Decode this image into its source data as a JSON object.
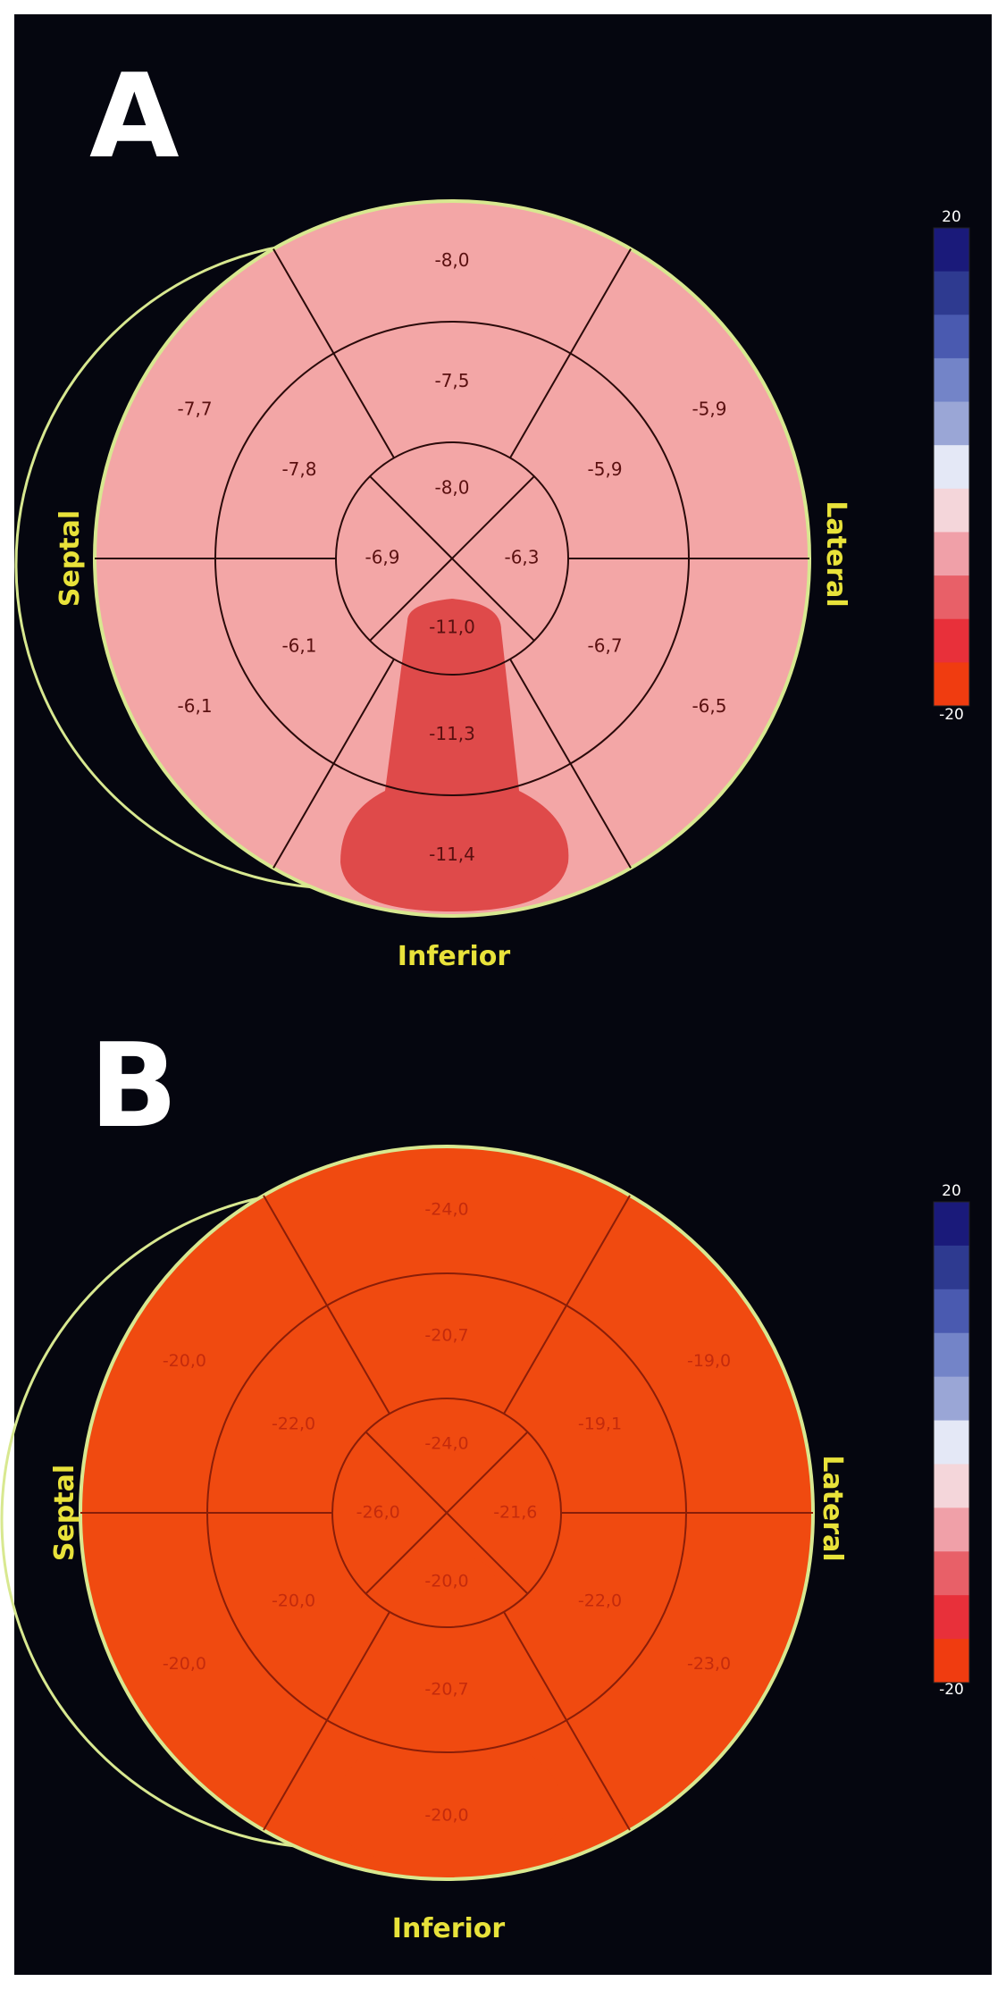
{
  "panels": [
    {
      "letter": "A",
      "labels": {
        "septal": "Septal",
        "lateral": "Lateral",
        "inferior": "Inferior"
      },
      "colors": {
        "fill": "#f3a6a6",
        "hot": "#df4a4a",
        "text": "#5a1010",
        "line": "#2a0a0a",
        "rim": "#16521c",
        "outline": "#d8e890"
      },
      "basal": [
        "-8,0",
        "-5,9",
        "-6,5",
        "-11,4",
        "-6,1",
        "-7,7"
      ],
      "mid": [
        "-7,5",
        "-5,9",
        "-6,7",
        "-11,3",
        "-6,1",
        "-7,8"
      ],
      "apical": [
        "-8,0",
        "-6,3",
        "-11,0",
        "-6,9"
      ],
      "scale": {
        "top": "20",
        "bottom": "-20"
      }
    },
    {
      "letter": "B",
      "labels": {
        "septal": "Septal",
        "lateral": "Lateral",
        "inferior": "Inferior"
      },
      "colors": {
        "fill": "#f04a10",
        "hot": "#f04a10",
        "text": "#c42b0c",
        "line": "#8a1e08",
        "rim": "#16521c",
        "outline": "#d8e890"
      },
      "basal": [
        "-24,0",
        "-19,0",
        "-23,0",
        "-20,0",
        "-20,0",
        "-20,0"
      ],
      "mid": [
        "-20,7",
        "-19,1",
        "-22,0",
        "-20,7",
        "-20,0",
        "-22,0"
      ],
      "apical": [
        "-24,0",
        "-21,6",
        "-20,0",
        "-26,0"
      ],
      "scale": {
        "top": "20",
        "bottom": "-20"
      }
    }
  ],
  "scale_colors": [
    "#1a1a7a",
    "#2e3a90",
    "#4a5ab0",
    "#7384c8",
    "#9aa6d6",
    "#e4e8f6",
    "#f4d6da",
    "#f0a0a8",
    "#e86068",
    "#e8303a",
    "#f03c10"
  ]
}
